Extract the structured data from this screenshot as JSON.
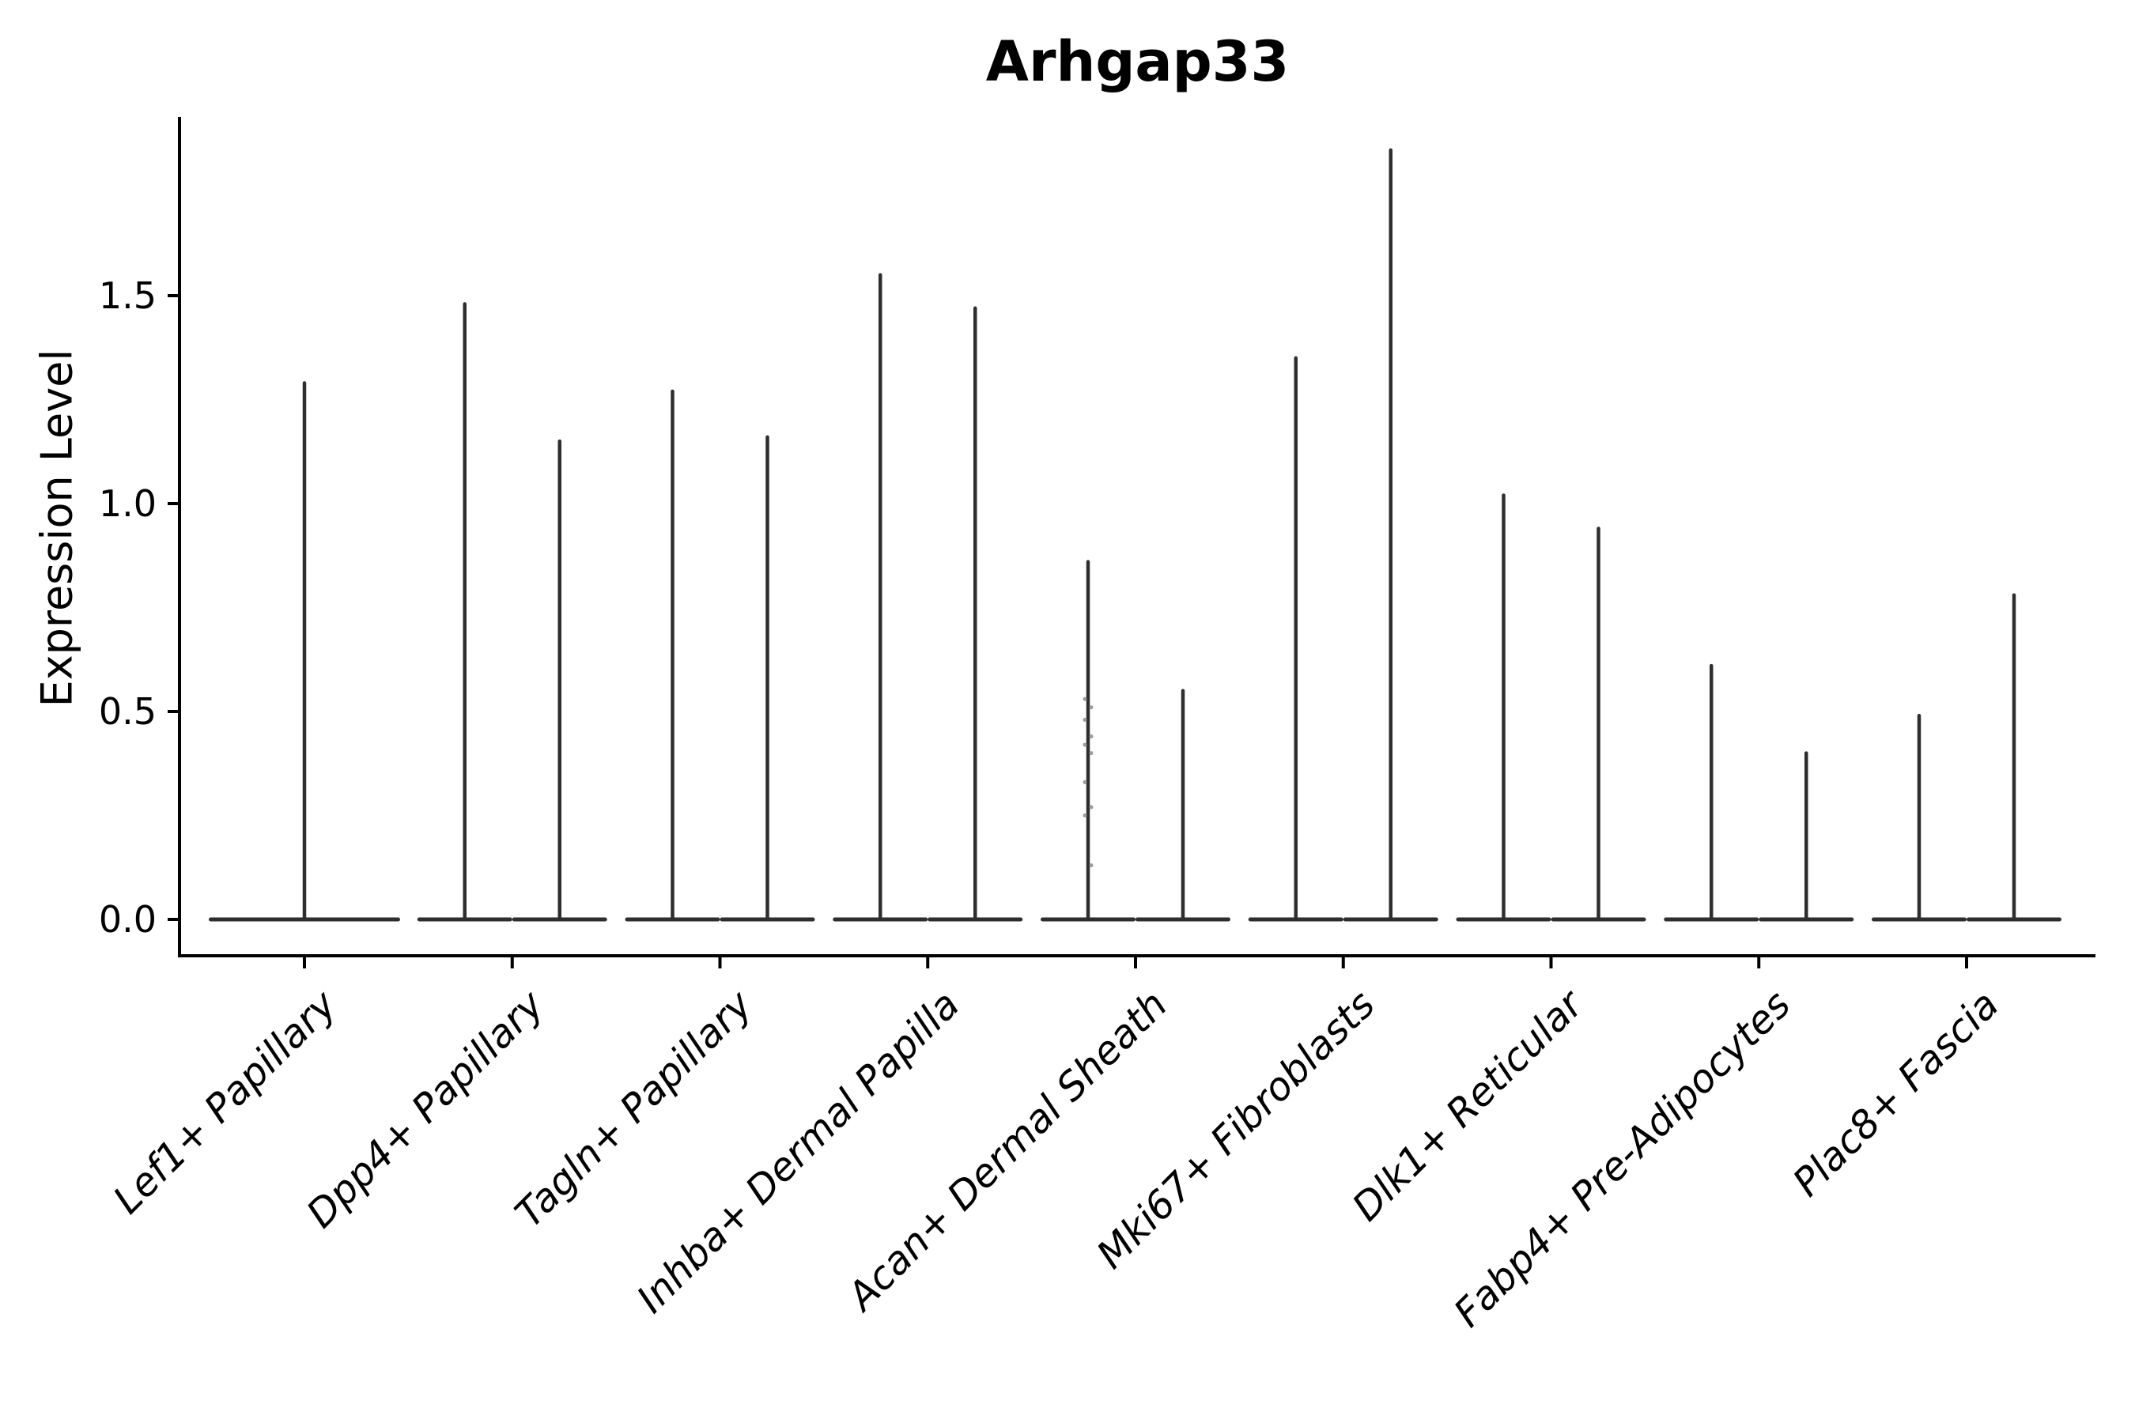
{
  "chart_data": {
    "type": "violin",
    "title": "Arhgap33",
    "xlabel": "",
    "ylabel": "Expression Level",
    "ylim": [
      -0.09,
      1.93
    ],
    "grid": false,
    "legend": null,
    "yticks": [
      {
        "value": 0.0,
        "label": "0.0"
      },
      {
        "value": 0.5,
        "label": "0.5"
      },
      {
        "value": 1.0,
        "label": "1.0"
      },
      {
        "value": 1.5,
        "label": "1.5"
      }
    ],
    "categories": [
      {
        "label": "Lef1+ Papillary",
        "violins": [
          {
            "max": 1.29
          }
        ]
      },
      {
        "label": "Dpp4+ Papillary",
        "violins": [
          {
            "max": 1.48
          },
          {
            "max": 1.15
          }
        ]
      },
      {
        "label": "Tagln+ Papillary",
        "violins": [
          {
            "max": 1.27
          },
          {
            "max": 1.16
          }
        ]
      },
      {
        "label": "Inhba+ Dermal Papilla",
        "violins": [
          {
            "max": 1.55
          },
          {
            "max": 1.47
          }
        ]
      },
      {
        "label": "Acan+ Dermal Sheath",
        "violins": [
          {
            "max": 0.86,
            "dots": [
              0.53,
              0.51,
              0.48,
              0.44,
              0.42,
              0.4,
              0.33,
              0.27,
              0.25,
              0.13
            ]
          },
          {
            "max": 0.55
          }
        ]
      },
      {
        "label": "Mki67+ Fibroblasts",
        "violins": [
          {
            "max": 1.35
          },
          {
            "max": 1.85
          }
        ]
      },
      {
        "label": "Dlk1+ Reticular",
        "violins": [
          {
            "max": 1.02
          },
          {
            "max": 0.94
          }
        ]
      },
      {
        "label": "Fabp4+ Pre-Adipocytes",
        "violins": [
          {
            "max": 0.61
          },
          {
            "max": 0.4
          }
        ]
      },
      {
        "label": "Plac8+ Fascia",
        "violins": [
          {
            "max": 0.49
          },
          {
            "max": 0.78
          }
        ]
      }
    ],
    "colors": {
      "violin": "#2e2e2e",
      "axis": "#000000",
      "text": "#000000",
      "jitter_dot": "#9b9b9b",
      "background": "#ffffff"
    }
  }
}
